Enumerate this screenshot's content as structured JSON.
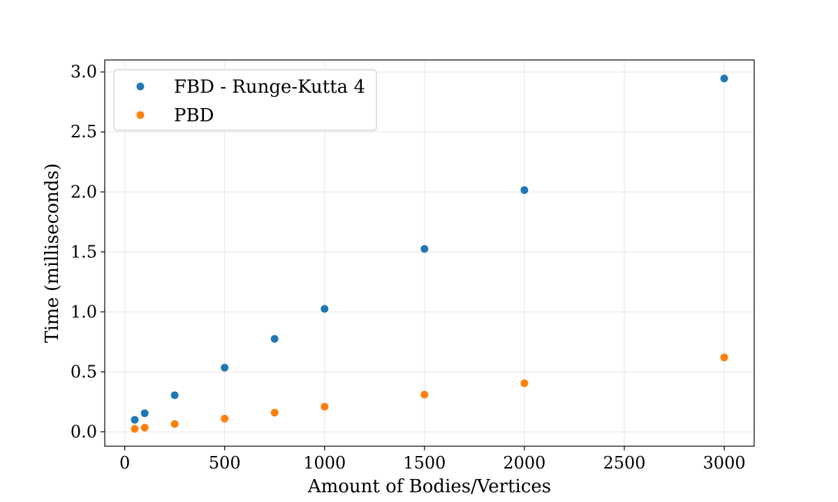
{
  "chart_data": {
    "type": "scatter",
    "xlabel": "Amount of Bodies/Vertices",
    "ylabel": "Time (milliseconds)",
    "xlim": [
      -100,
      3150
    ],
    "ylim": [
      -0.12,
      3.1
    ],
    "xticks": [
      0,
      500,
      1000,
      1500,
      2000,
      2500,
      3000
    ],
    "yticks": [
      0.0,
      0.5,
      1.0,
      1.5,
      2.0,
      2.5,
      3.0
    ],
    "ytick_labels": [
      "0.0",
      "0.5",
      "1.0",
      "1.5",
      "2.0",
      "2.5",
      "3.0"
    ],
    "grid": true,
    "legend_position": "top-left",
    "series": [
      {
        "name": "FBD - Runge-Kutta 4",
        "color": "#1f77b4",
        "x": [
          50,
          100,
          250,
          500,
          750,
          1000,
          1500,
          2000,
          3000
        ],
        "y": [
          0.1,
          0.155,
          0.305,
          0.535,
          0.775,
          1.025,
          1.525,
          2.015,
          2.945
        ]
      },
      {
        "name": "PBD",
        "color": "#ff7f0e",
        "x": [
          50,
          100,
          250,
          500,
          750,
          1000,
          1500,
          2000,
          3000
        ],
        "y": [
          0.025,
          0.035,
          0.065,
          0.11,
          0.16,
          0.21,
          0.31,
          0.405,
          0.62
        ]
      }
    ]
  }
}
